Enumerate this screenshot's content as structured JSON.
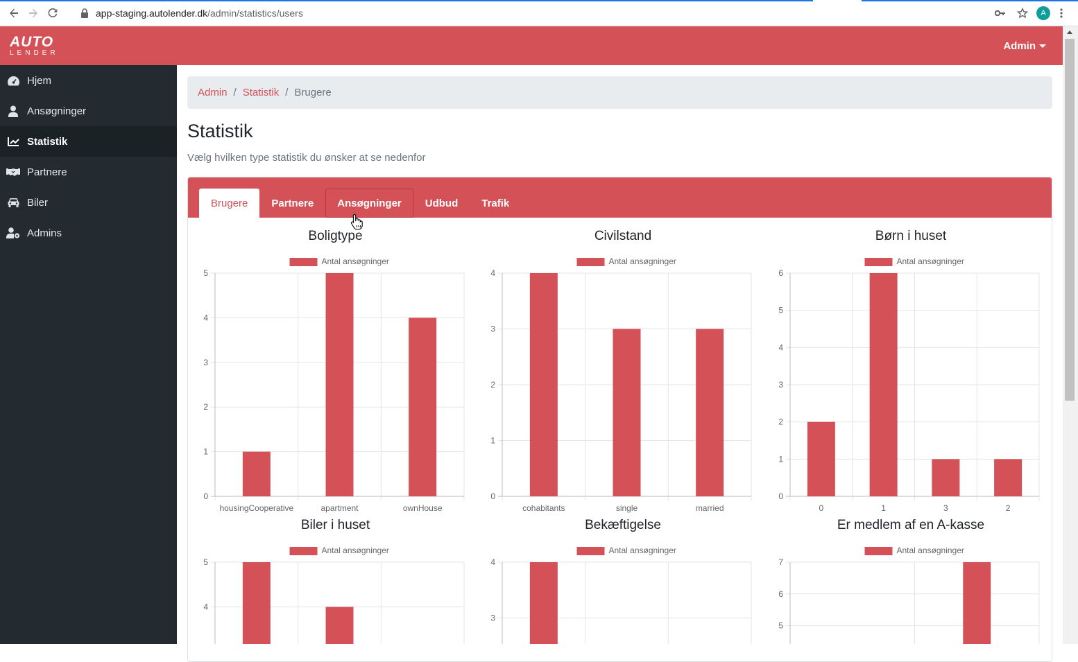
{
  "browser": {
    "url_host": "app-staging.autolender.dk",
    "url_path": "/admin/statistics/users",
    "profile_initial": "A"
  },
  "header": {
    "logo_top": "AUTO",
    "logo_bottom": "LENDER",
    "admin_label": "Admin"
  },
  "sidebar": {
    "items": [
      {
        "label": "Hjem",
        "icon": "dashboard-icon"
      },
      {
        "label": "Ansøgninger",
        "icon": "user-icon"
      },
      {
        "label": "Statistik",
        "icon": "chart-line-icon",
        "active": true
      },
      {
        "label": "Partnere",
        "icon": "handshake-icon"
      },
      {
        "label": "Biler",
        "icon": "car-icon"
      },
      {
        "label": "Admins",
        "icon": "user-cog-icon"
      }
    ]
  },
  "breadcrumb": {
    "admin": "Admin",
    "statistik": "Statistik",
    "current": "Brugere"
  },
  "page": {
    "title": "Statistik",
    "subtitle": "Vælg hvilken type statistik du ønsker at se nedenfor"
  },
  "tabs": [
    "Brugere",
    "Partnere",
    "Ansøgninger",
    "Udbud",
    "Trafik"
  ],
  "colors": {
    "accent": "#d35157",
    "sidebar": "#232b30"
  },
  "chart_data": [
    {
      "type": "bar",
      "title": "Boligtype",
      "legend": "Antal ansøgninger",
      "categories": [
        "housingCooperative",
        "apartment",
        "ownHouse"
      ],
      "values": [
        1,
        5,
        4
      ],
      "ylim": [
        0,
        5
      ],
      "yticks": [
        0,
        1,
        2,
        3,
        4,
        5
      ]
    },
    {
      "type": "bar",
      "title": "Civilstand",
      "legend": "Antal ansøgninger",
      "categories": [
        "cohabitants",
        "single",
        "married"
      ],
      "values": [
        4,
        3,
        3
      ],
      "ylim": [
        0,
        4
      ],
      "yticks": [
        0,
        1,
        2,
        3,
        4
      ]
    },
    {
      "type": "bar",
      "title": "Børn i huset",
      "legend": "Antal ansøgninger",
      "categories": [
        "0",
        "1",
        "3",
        "2"
      ],
      "values": [
        2,
        6,
        1,
        1
      ],
      "ylim": [
        0,
        6
      ],
      "yticks": [
        0,
        1,
        2,
        3,
        4,
        5,
        6
      ]
    },
    {
      "type": "bar",
      "title": "Biler i huset",
      "legend": "Antal ansøgninger",
      "categories": [
        "",
        "",
        ""
      ],
      "values": [
        5,
        4,
        null
      ],
      "ylim": [
        0,
        5
      ],
      "yticks": [
        5,
        4
      ],
      "partial": true
    },
    {
      "type": "bar",
      "title": "Bekæftigelse",
      "legend": "Antal ansøgninger",
      "categories": [
        "",
        "",
        ""
      ],
      "values": [
        4,
        null,
        null
      ],
      "ylim": [
        0,
        4
      ],
      "yticks": [
        4,
        3
      ],
      "partial": true
    },
    {
      "type": "bar",
      "title": "Er medlem af en A-kasse",
      "legend": "Antal ansøgninger",
      "categories": [
        "",
        ""
      ],
      "values": [
        null,
        7
      ],
      "ylim": [
        0,
        7
      ],
      "yticks": [
        7,
        6,
        5
      ],
      "partial": true
    }
  ]
}
